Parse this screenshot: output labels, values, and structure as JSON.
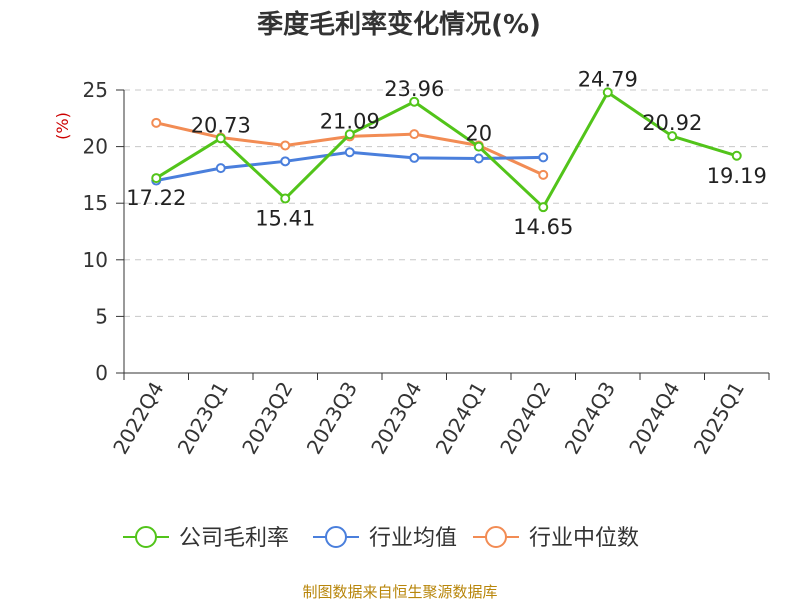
{
  "chart_data": {
    "type": "line",
    "title": "季度毛利率变化情况(%)",
    "ylabel": "(%)",
    "xlabel": "",
    "categories": [
      "2022Q4",
      "2023Q1",
      "2023Q2",
      "2023Q3",
      "2023Q4",
      "2024Q1",
      "2024Q2",
      "2024Q3",
      "2024Q4",
      "2025Q1"
    ],
    "ylim": [
      0,
      25
    ],
    "yticks": [
      0,
      5,
      10,
      15,
      20,
      25
    ],
    "grid": "horizontal dashed",
    "legend_position": "bottom",
    "series": [
      {
        "name": "公司毛利率",
        "color": "#52c41a",
        "values": [
          17.22,
          20.73,
          15.41,
          21.09,
          23.96,
          20,
          14.65,
          24.79,
          20.92,
          19.19
        ],
        "labels": [
          "17.22",
          "20.73",
          "15.41",
          "21.09",
          "23.96",
          "20",
          "14.65",
          "24.79",
          "20.92",
          "19.19"
        ]
      },
      {
        "name": "行业均值",
        "color": "#4a7fdc",
        "values": [
          17.0,
          18.1,
          18.7,
          19.5,
          19.0,
          18.95,
          19.05,
          null,
          null,
          null
        ]
      },
      {
        "name": "行业中位数",
        "color": "#f28c54",
        "values": [
          22.1,
          20.8,
          20.1,
          20.9,
          21.1,
          20.1,
          17.5,
          null,
          null,
          null
        ]
      }
    ]
  },
  "source": "制图数据来自恒生聚源数据库"
}
